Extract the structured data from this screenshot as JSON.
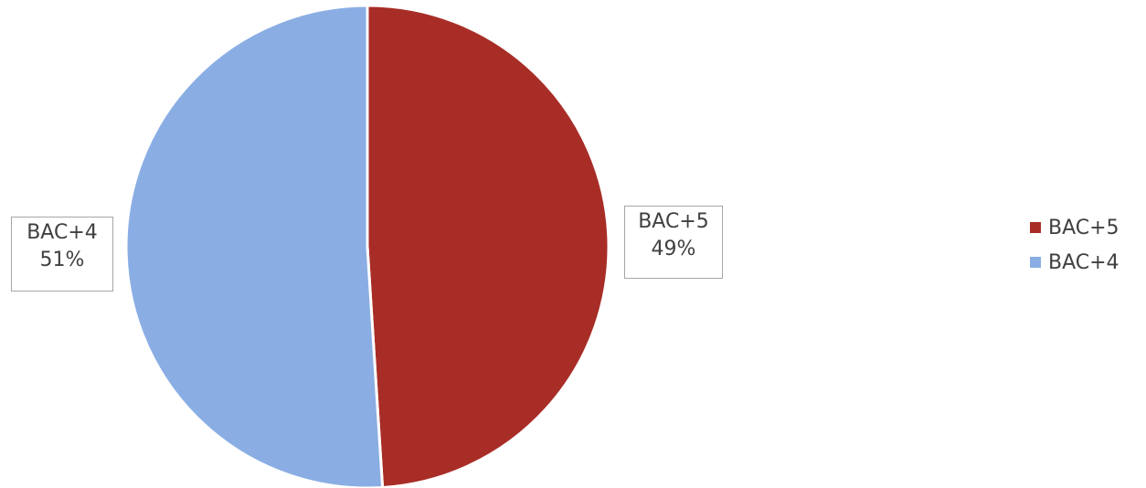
{
  "chart_data": {
    "type": "pie",
    "categories": [
      "BAC+5",
      "BAC+4"
    ],
    "values": [
      49,
      51
    ],
    "value_unit": "%",
    "colors": [
      "#a82d27",
      "#8aaee4"
    ],
    "data_labels": [
      {
        "category": "BAC+5",
        "percent": "49%"
      },
      {
        "category": "BAC+4",
        "percent": "51%"
      }
    ],
    "legend": {
      "placement": "right",
      "entries": [
        "BAC+5",
        "BAC+4"
      ]
    }
  }
}
